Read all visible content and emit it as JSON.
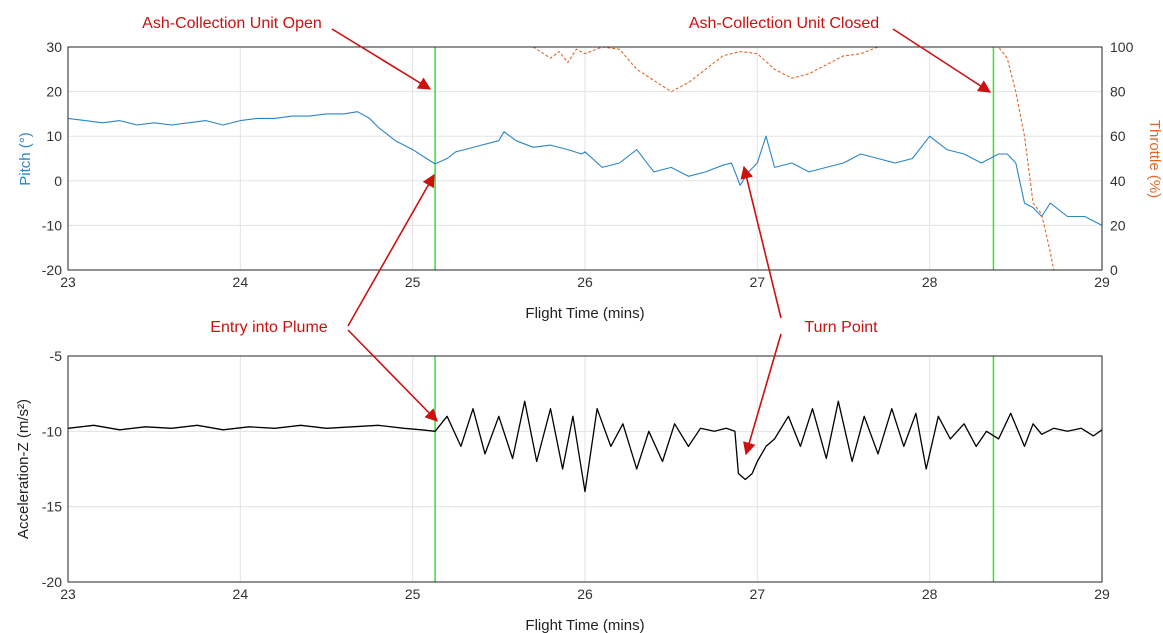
{
  "colors": {
    "pitch": "#2b86c5",
    "throttle": "#e06a2c",
    "accel": "#000000",
    "marker": "#3ddc3d",
    "annotation": "#cc1111",
    "grid": "#e3e3e3"
  },
  "annotations": {
    "unit_open": "Ash-Collection Unit Open",
    "unit_closed": "Ash-Collection Unit Closed",
    "entry": "Entry into Plume",
    "turn": "Turn Point"
  },
  "chart_data": [
    {
      "type": "line",
      "xlabel": "Flight Time (mins)",
      "ylabel": "Pitch (°)",
      "y2label": "Throttle (%)",
      "xlim": [
        23,
        29
      ],
      "ylim": [
        -20,
        30
      ],
      "y2lim": [
        0,
        100
      ],
      "xticks": [
        "23",
        "24",
        "25",
        "26",
        "27",
        "28",
        "29"
      ],
      "yticks": [
        "-20",
        "-10",
        "0",
        "10",
        "20",
        "30"
      ],
      "y2ticks": [
        "0",
        "20",
        "40",
        "60",
        "80",
        "100"
      ],
      "grid": true,
      "vlines": [
        25.13,
        28.37
      ],
      "series": [
        {
          "name": "Pitch",
          "axis": "left",
          "x": [
            23.0,
            23.1,
            23.2,
            23.3,
            23.4,
            23.5,
            23.6,
            23.7,
            23.8,
            23.9,
            24.0,
            24.1,
            24.2,
            24.3,
            24.4,
            24.5,
            24.6,
            24.68,
            24.75,
            24.8,
            24.9,
            25.0,
            25.08,
            25.13,
            25.2,
            25.25,
            25.3,
            25.4,
            25.5,
            25.53,
            25.6,
            25.7,
            25.8,
            25.9,
            25.98,
            26.0,
            26.1,
            26.2,
            26.3,
            26.4,
            26.5,
            26.6,
            26.7,
            26.8,
            26.85,
            26.88,
            26.9,
            26.95,
            27.0,
            27.05,
            27.1,
            27.2,
            27.3,
            27.4,
            27.5,
            27.6,
            27.7,
            27.8,
            27.9,
            28.0,
            28.1,
            28.2,
            28.3,
            28.4,
            28.45,
            28.5,
            28.55,
            28.6,
            28.65,
            28.7,
            28.8,
            28.9,
            29.0
          ],
          "values": [
            14,
            13.5,
            13,
            13.5,
            12.5,
            13,
            12.5,
            13,
            13.5,
            12.5,
            13.5,
            14,
            14,
            14.5,
            14.5,
            15,
            15,
            15.5,
            14,
            12,
            9,
            7,
            5,
            3.8,
            5,
            6.5,
            7,
            8,
            9,
            11,
            9,
            7.5,
            8,
            7,
            6,
            6.5,
            3,
            4,
            7,
            2,
            3,
            1,
            2,
            3.5,
            4,
            1,
            -1,
            2,
            4,
            10,
            3,
            4,
            2,
            3,
            4,
            6,
            5,
            4,
            5,
            10,
            7,
            6,
            4,
            6,
            6,
            4,
            -5,
            -6,
            -8,
            -5,
            -8,
            -8,
            -10
          ]
        },
        {
          "name": "Throttle",
          "axis": "right",
          "x": [
            23.0,
            24.0,
            25.0,
            25.7,
            25.8,
            25.85,
            25.9,
            25.95,
            26.0,
            26.1,
            26.2,
            26.3,
            26.4,
            26.5,
            26.6,
            26.7,
            26.8,
            26.9,
            27.0,
            27.1,
            27.2,
            27.3,
            27.4,
            27.5,
            27.6,
            27.7,
            27.8,
            27.9,
            28.0,
            28.2,
            28.4,
            28.45,
            28.5,
            28.55,
            28.6,
            28.65,
            28.7,
            28.72,
            29.0
          ],
          "values": [
            100,
            100,
            100,
            100,
            95,
            98,
            93,
            99,
            97,
            100,
            99,
            90,
            85,
            80,
            84,
            90,
            96,
            98,
            97,
            90,
            86,
            88,
            92,
            96,
            97,
            100,
            100,
            100,
            100,
            100,
            100,
            95,
            80,
            60,
            30,
            25,
            8,
            0,
            0
          ]
        }
      ]
    },
    {
      "type": "line",
      "xlabel": "Flight Time (mins)",
      "ylabel": "Acceleration-Z (m/s²)",
      "xlim": [
        23,
        29
      ],
      "ylim": [
        -20,
        -5
      ],
      "xticks": [
        "23",
        "24",
        "25",
        "26",
        "27",
        "28",
        "29"
      ],
      "yticks": [
        "-20",
        "-15",
        "-10",
        "-5"
      ],
      "grid": true,
      "vlines": [
        25.13,
        28.37
      ],
      "series": [
        {
          "name": "Acceleration-Z",
          "x": [
            23.0,
            23.15,
            23.3,
            23.45,
            23.6,
            23.75,
            23.9,
            24.05,
            24.2,
            24.35,
            24.5,
            24.65,
            24.8,
            24.95,
            25.05,
            25.13,
            25.2,
            25.28,
            25.35,
            25.42,
            25.5,
            25.58,
            25.65,
            25.72,
            25.8,
            25.87,
            25.93,
            26.0,
            26.07,
            26.15,
            26.22,
            26.3,
            26.37,
            26.45,
            26.52,
            26.6,
            26.67,
            26.75,
            26.82,
            26.87,
            26.89,
            26.93,
            26.97,
            27.0,
            27.05,
            27.1,
            27.18,
            27.25,
            27.32,
            27.4,
            27.47,
            27.55,
            27.62,
            27.7,
            27.78,
            27.85,
            27.92,
            27.98,
            28.05,
            28.12,
            28.2,
            28.27,
            28.33,
            28.4,
            28.47,
            28.55,
            28.6,
            28.65,
            28.72,
            28.8,
            28.88,
            28.95,
            29.0
          ],
          "values": [
            -9.8,
            -9.6,
            -9.9,
            -9.7,
            -9.8,
            -9.6,
            -9.9,
            -9.7,
            -9.8,
            -9.6,
            -9.8,
            -9.7,
            -9.6,
            -9.8,
            -9.9,
            -10.0,
            -9.0,
            -11.0,
            -8.5,
            -11.5,
            -9.0,
            -11.8,
            -8.0,
            -12.0,
            -8.5,
            -12.5,
            -9.0,
            -14.0,
            -8.5,
            -11.0,
            -9.5,
            -12.5,
            -10.0,
            -12.0,
            -9.5,
            -11.0,
            -9.8,
            -10.0,
            -9.8,
            -10.0,
            -12.8,
            -13.2,
            -12.8,
            -12.0,
            -11.0,
            -10.5,
            -9.0,
            -11.0,
            -8.5,
            -11.8,
            -8.0,
            -12.0,
            -9.0,
            -11.5,
            -8.5,
            -11.0,
            -8.8,
            -12.5,
            -9.0,
            -10.5,
            -9.5,
            -11.0,
            -10.0,
            -10.5,
            -8.8,
            -11.0,
            -9.5,
            -10.2,
            -9.8,
            -10.0,
            -9.8,
            -10.3,
            -9.9
          ]
        }
      ]
    }
  ]
}
